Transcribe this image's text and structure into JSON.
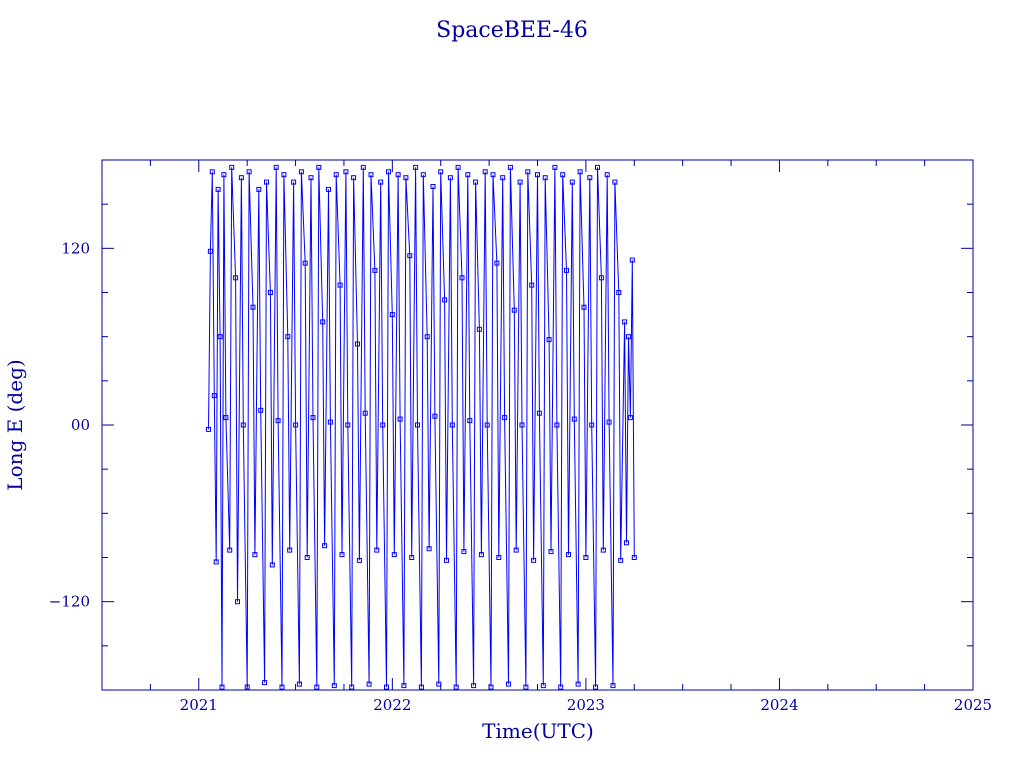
{
  "chart_data": {
    "type": "line",
    "title": "SpaceBEE-46",
    "xlabel": "Time(UTC)",
    "ylabel": "Long E (deg)",
    "xlim": [
      2020.5,
      2025.0
    ],
    "ylim": [
      -180,
      180
    ],
    "x_ticks": [
      "2021",
      "2022",
      "2023",
      "2024",
      "2025"
    ],
    "y_ticks": [
      "−120",
      "00",
      "120"
    ],
    "grid": false,
    "data_start": 2021.05,
    "data_end": 2023.25,
    "series": [
      {
        "color": "#0000ff",
        "marker": "square",
        "points": [
          [
            2021.05,
            -3
          ],
          [
            2021.06,
            118
          ],
          [
            2021.07,
            172
          ],
          [
            2021.08,
            20
          ],
          [
            2021.09,
            -93
          ],
          [
            2021.1,
            160
          ],
          [
            2021.11,
            60
          ],
          [
            2021.12,
            -178
          ],
          [
            2021.13,
            170
          ],
          [
            2021.14,
            5
          ],
          [
            2021.16,
            -85
          ],
          [
            2021.17,
            175
          ],
          [
            2021.19,
            100
          ],
          [
            2021.2,
            -120
          ],
          [
            2021.22,
            168
          ],
          [
            2021.23,
            0
          ],
          [
            2021.25,
            -178
          ],
          [
            2021.26,
            172
          ],
          [
            2021.28,
            80
          ],
          [
            2021.29,
            -88
          ],
          [
            2021.31,
            160
          ],
          [
            2021.32,
            10
          ],
          [
            2021.34,
            -175
          ],
          [
            2021.35,
            165
          ],
          [
            2021.37,
            90
          ],
          [
            2021.38,
            -95
          ],
          [
            2021.4,
            175
          ],
          [
            2021.41,
            3
          ],
          [
            2021.43,
            -178
          ],
          [
            2021.44,
            170
          ],
          [
            2021.46,
            60
          ],
          [
            2021.47,
            -85
          ],
          [
            2021.49,
            165
          ],
          [
            2021.5,
            0
          ],
          [
            2021.52,
            -176
          ],
          [
            2021.53,
            172
          ],
          [
            2021.55,
            110
          ],
          [
            2021.56,
            -90
          ],
          [
            2021.58,
            168
          ],
          [
            2021.59,
            5
          ],
          [
            2021.61,
            -178
          ],
          [
            2021.62,
            175
          ],
          [
            2021.64,
            70
          ],
          [
            2021.65,
            -82
          ],
          [
            2021.67,
            160
          ],
          [
            2021.68,
            2
          ],
          [
            2021.7,
            -177
          ],
          [
            2021.71,
            170
          ],
          [
            2021.73,
            95
          ],
          [
            2021.74,
            -88
          ],
          [
            2021.76,
            172
          ],
          [
            2021.77,
            0
          ],
          [
            2021.79,
            -178
          ],
          [
            2021.8,
            168
          ],
          [
            2021.82,
            55
          ],
          [
            2021.83,
            -92
          ],
          [
            2021.85,
            175
          ],
          [
            2021.86,
            8
          ],
          [
            2021.88,
            -176
          ],
          [
            2021.89,
            170
          ],
          [
            2021.91,
            105
          ],
          [
            2021.92,
            -85
          ],
          [
            2021.94,
            165
          ],
          [
            2021.95,
            0
          ],
          [
            2021.97,
            -178
          ],
          [
            2021.98,
            172
          ],
          [
            2022.0,
            75
          ],
          [
            2022.01,
            -88
          ],
          [
            2022.03,
            170
          ],
          [
            2022.04,
            4
          ],
          [
            2022.06,
            -177
          ],
          [
            2022.07,
            168
          ],
          [
            2022.09,
            115
          ],
          [
            2022.1,
            -90
          ],
          [
            2022.12,
            175
          ],
          [
            2022.13,
            0
          ],
          [
            2022.15,
            -178
          ],
          [
            2022.16,
            170
          ],
          [
            2022.18,
            60
          ],
          [
            2022.19,
            -84
          ],
          [
            2022.21,
            162
          ],
          [
            2022.22,
            6
          ],
          [
            2022.24,
            -176
          ],
          [
            2022.25,
            172
          ],
          [
            2022.27,
            85
          ],
          [
            2022.28,
            -92
          ],
          [
            2022.3,
            168
          ],
          [
            2022.31,
            0
          ],
          [
            2022.33,
            -178
          ],
          [
            2022.34,
            175
          ],
          [
            2022.36,
            100
          ],
          [
            2022.37,
            -86
          ],
          [
            2022.39,
            170
          ],
          [
            2022.4,
            3
          ],
          [
            2022.42,
            -177
          ],
          [
            2022.43,
            165
          ],
          [
            2022.45,
            65
          ],
          [
            2022.46,
            -88
          ],
          [
            2022.48,
            172
          ],
          [
            2022.49,
            0
          ],
          [
            2022.51,
            -178
          ],
          [
            2022.52,
            170
          ],
          [
            2022.54,
            110
          ],
          [
            2022.55,
            -90
          ],
          [
            2022.57,
            168
          ],
          [
            2022.58,
            5
          ],
          [
            2022.6,
            -176
          ],
          [
            2022.61,
            175
          ],
          [
            2022.63,
            78
          ],
          [
            2022.64,
            -85
          ],
          [
            2022.66,
            165
          ],
          [
            2022.67,
            0
          ],
          [
            2022.69,
            -178
          ],
          [
            2022.7,
            172
          ],
          [
            2022.72,
            95
          ],
          [
            2022.73,
            -92
          ],
          [
            2022.75,
            170
          ],
          [
            2022.76,
            8
          ],
          [
            2022.78,
            -177
          ],
          [
            2022.79,
            168
          ],
          [
            2022.81,
            58
          ],
          [
            2022.82,
            -86
          ],
          [
            2022.84,
            175
          ],
          [
            2022.85,
            0
          ],
          [
            2022.87,
            -178
          ],
          [
            2022.88,
            170
          ],
          [
            2022.9,
            105
          ],
          [
            2022.91,
            -88
          ],
          [
            2022.93,
            165
          ],
          [
            2022.94,
            4
          ],
          [
            2022.96,
            -176
          ],
          [
            2022.97,
            172
          ],
          [
            2022.99,
            80
          ],
          [
            2023.0,
            -90
          ],
          [
            2023.02,
            168
          ],
          [
            2023.03,
            0
          ],
          [
            2023.05,
            -178
          ],
          [
            2023.06,
            175
          ],
          [
            2023.08,
            100
          ],
          [
            2023.09,
            -85
          ],
          [
            2023.11,
            170
          ],
          [
            2023.12,
            2
          ],
          [
            2023.14,
            -177
          ],
          [
            2023.15,
            165
          ],
          [
            2023.17,
            90
          ],
          [
            2023.18,
            -92
          ],
          [
            2023.2,
            70
          ],
          [
            2023.21,
            -80
          ],
          [
            2023.22,
            60
          ],
          [
            2023.23,
            5
          ],
          [
            2023.24,
            112
          ],
          [
            2023.25,
            -90
          ]
        ]
      }
    ]
  }
}
